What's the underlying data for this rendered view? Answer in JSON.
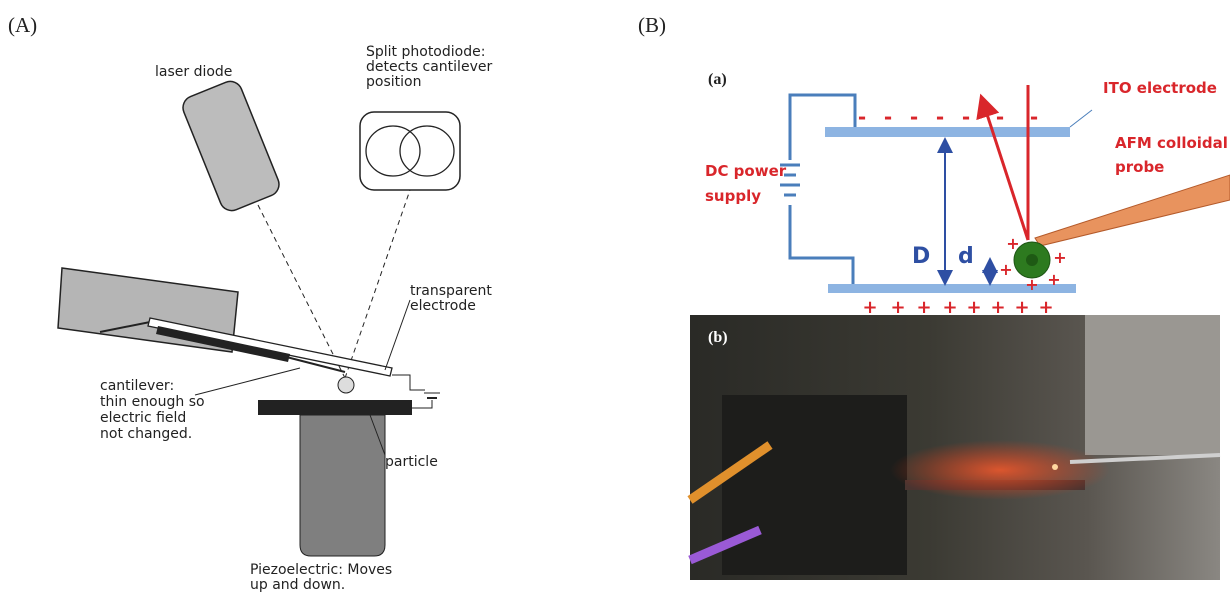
{
  "panel_a": {
    "label": "(A)",
    "laser_diode": "laser diode",
    "photodiode": [
      "Split photodiode:",
      "detects cantilever",
      "position"
    ],
    "electrode": [
      "transparent",
      "electrode"
    ],
    "cantilever": [
      "cantilever:",
      "thin enough so",
      "electric field",
      "not changed."
    ],
    "particle": "particle",
    "piezo": [
      "Piezoelectric: Moves",
      "up and down."
    ]
  },
  "panel_b": {
    "label": "(B)",
    "sub_a": "(a)",
    "ito": "ITO electrode",
    "afm": [
      "AFM colloidal",
      "probe"
    ],
    "dc": [
      "DC power",
      "supply"
    ],
    "big_d": "D",
    "small_d": "d",
    "minus": "-",
    "plus": "+",
    "sub_b": "(b)"
  }
}
